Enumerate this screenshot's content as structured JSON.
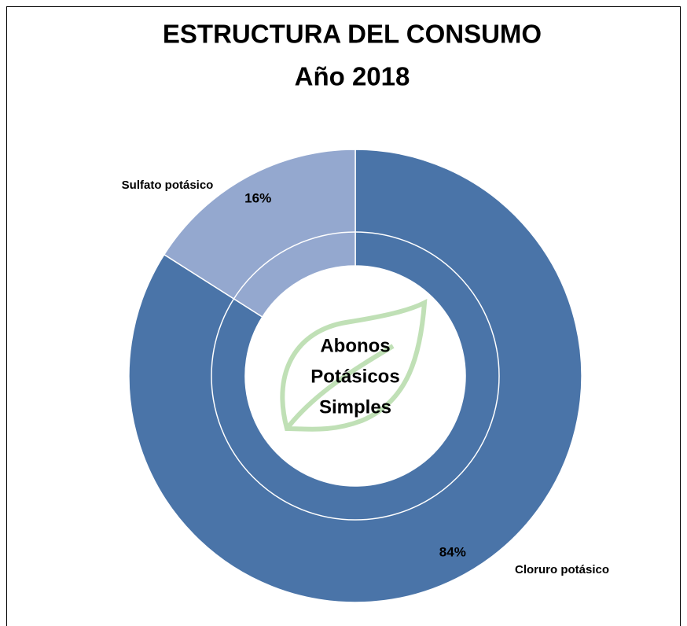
{
  "chart_data": {
    "type": "donut",
    "title": "ESTRUCTURA DEL CONSUMO",
    "subtitle": "Año 2018",
    "center_text": [
      "Abonos",
      "Potásicos",
      "Simples"
    ],
    "categories": [
      "Cloruro potásico",
      "Sulfato potásico"
    ],
    "values": [
      84,
      16
    ],
    "value_labels": [
      "84%",
      "16%"
    ],
    "colors": [
      "#4a74a8",
      "#94a8cf"
    ]
  }
}
